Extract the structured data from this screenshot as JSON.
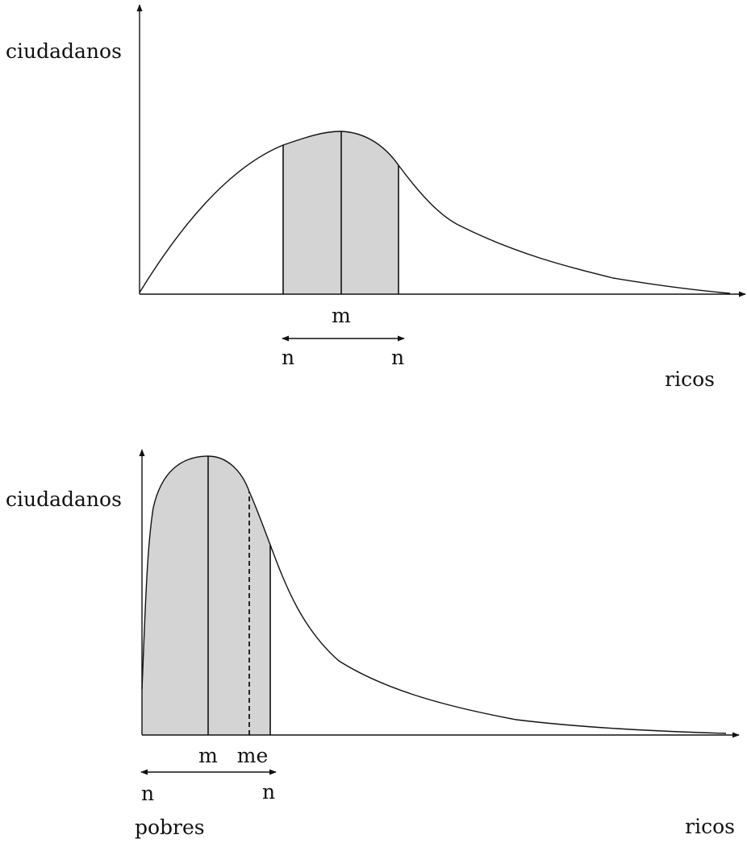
{
  "colors": {
    "ink": "#111111",
    "shade": "#d4d4d4",
    "background": "#ffffff"
  },
  "top_panel": {
    "y_axis_label": "ciudadanos",
    "x_axis_right_label": "ricos",
    "median_label": "m",
    "range_left_label": "n",
    "range_right_label": "n"
  },
  "bottom_panel": {
    "y_axis_label": "ciudadanos",
    "x_axis_left_label": "pobres",
    "x_axis_right_label": "ricos",
    "median_label": "m",
    "mean_label": "me",
    "range_left_label": "n",
    "range_right_label": "n"
  }
}
